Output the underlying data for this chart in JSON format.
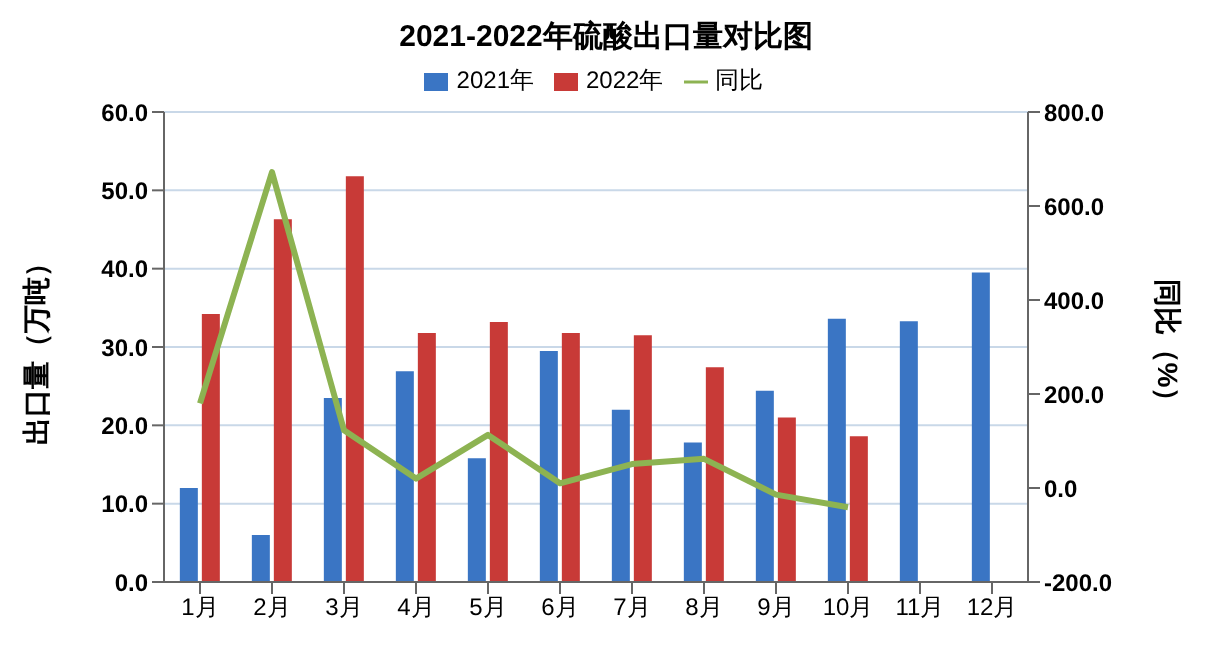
{
  "chart_data": {
    "type": "bar",
    "title": "2021-2022年硫酸出口量对比图",
    "ylabel": "出口量（万吨）",
    "y2label": "同比（%）",
    "categories": [
      "1月",
      "2月",
      "3月",
      "4月",
      "5月",
      "6月",
      "7月",
      "8月",
      "9月",
      "10月",
      "11月",
      "12月"
    ],
    "series": [
      {
        "name": "2021年",
        "color": "#3a75c4",
        "values": [
          12.0,
          6.0,
          23.5,
          26.9,
          15.8,
          29.5,
          22.0,
          17.8,
          24.4,
          33.6,
          33.3,
          39.5
        ]
      },
      {
        "name": "2022年",
        "color": "#c83a37",
        "values": [
          34.2,
          46.3,
          51.8,
          31.8,
          33.2,
          31.8,
          31.5,
          27.4,
          21.0,
          18.6,
          null,
          null
        ]
      },
      {
        "name": "同比",
        "type": "line",
        "axis": "y2",
        "color": "#8db352",
        "values": [
          180,
          672,
          123,
          20,
          113,
          10,
          51,
          62,
          -14,
          -41,
          null,
          null
        ]
      }
    ],
    "ylim": [
      0,
      60
    ],
    "yticks": [
      {
        "value": 0,
        "label": "0.0"
      },
      {
        "value": 10,
        "label": "10.0"
      },
      {
        "value": 20,
        "label": "20.0"
      },
      {
        "value": 30,
        "label": "30.0"
      },
      {
        "value": 40,
        "label": "40.0"
      },
      {
        "value": 50,
        "label": "50.0"
      },
      {
        "value": 60,
        "label": "60.0"
      }
    ],
    "y2lim": [
      -200,
      800
    ],
    "y2ticks": [
      {
        "value": -200,
        "label": "-200.0"
      },
      {
        "value": 0,
        "label": "0.0"
      },
      {
        "value": 200,
        "label": "200.0"
      },
      {
        "value": 400,
        "label": "400.0"
      },
      {
        "value": 600,
        "label": "600.0"
      },
      {
        "value": 800,
        "label": "800.0"
      }
    ],
    "grid": "y",
    "legend": "top",
    "marker": "none"
  }
}
